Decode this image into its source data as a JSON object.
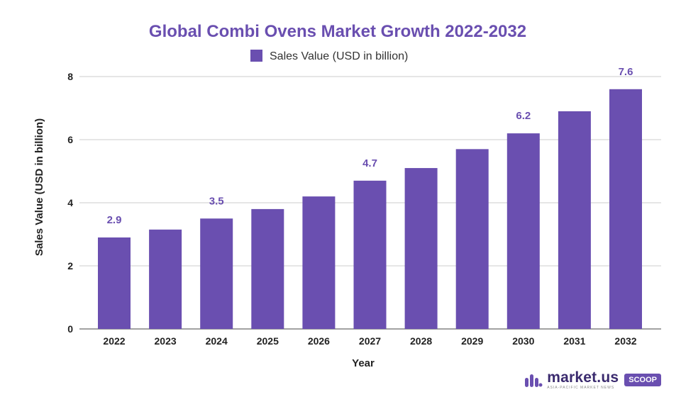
{
  "chart_data": {
    "type": "bar",
    "title": "Global Combi Ovens Market Growth 2022-2032",
    "xlabel": "Year",
    "ylabel": "Sales Value (USD in billion)",
    "categories": [
      "2022",
      "2023",
      "2024",
      "2025",
      "2026",
      "2027",
      "2028",
      "2029",
      "2030",
      "2031",
      "2032"
    ],
    "series": [
      {
        "name": "Sales Value (USD in billion)",
        "values": [
          2.9,
          3.15,
          3.5,
          3.8,
          4.2,
          4.7,
          5.1,
          5.7,
          6.2,
          6.9,
          7.6
        ],
        "labels": [
          "2.9",
          "",
          "3.5",
          "",
          "",
          "4.7",
          "",
          "",
          "6.2",
          "",
          "7.6"
        ]
      }
    ],
    "ylim": [
      0,
      8
    ],
    "yticks": [
      0,
      2,
      4,
      6,
      8
    ],
    "grid": true,
    "legend": "top-center",
    "bar_color": "#6a4fb0"
  },
  "brand": {
    "name": "market.us",
    "tagline": "ASIA-PACIFIC MARKET NEWS",
    "badge": "SCOOP"
  }
}
